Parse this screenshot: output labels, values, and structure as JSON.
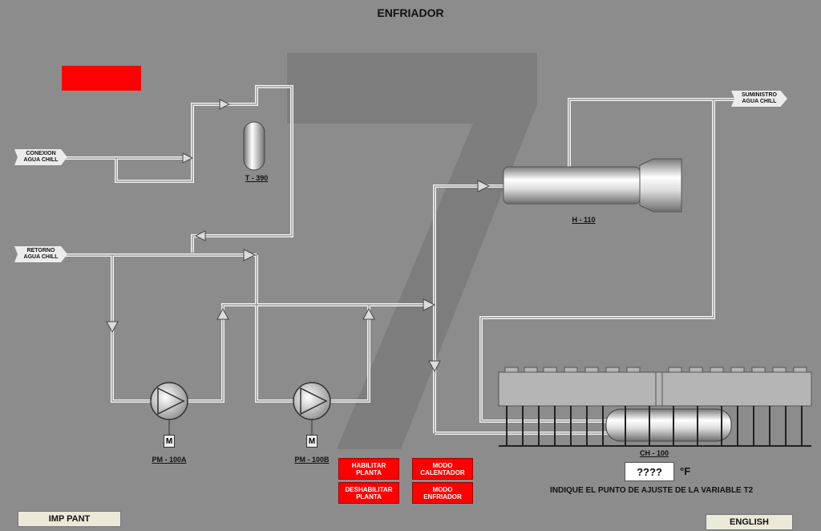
{
  "window": {
    "title": "ENFRIADOR"
  },
  "status_indicator": {
    "color": "#ff0000"
  },
  "inlets": {
    "conexion": {
      "line1": "CONEXION",
      "line2": "AGUA CHILL"
    },
    "retorno": {
      "line1": "RETORNO",
      "line2": "AGUA CHILL"
    },
    "suministro": {
      "line1": "SUMINISTRO",
      "line2": "AGUA CHILL"
    }
  },
  "equipment": {
    "tank": "T - 390",
    "heater": "H - 110",
    "chiller": "CH - 100",
    "pump_a": "PM - 100A",
    "pump_b": "PM - 100B",
    "motor_symbol": "M"
  },
  "controls": {
    "habilitar": {
      "line1": "HABILITAR",
      "line2": "PLANTA"
    },
    "deshabilitar": {
      "line1": "DESHABILITAR",
      "line2": "PLANTA"
    },
    "modo_calentador": {
      "line1": "MODO",
      "line2": "CALENTADOR"
    },
    "modo_enfriador": {
      "line1": "MODO",
      "line2": "ENFRIADOR"
    },
    "setpoint_value": "????",
    "setpoint_unit": "°F",
    "setpoint_prompt": "INDIQUE EL PUNTO DE AJUSTE DE LA VARIABLE T2",
    "print_button": "IMP PANT",
    "language_button": "ENGLISH"
  },
  "colors": {
    "background": "#8c8c8c",
    "pipe": "#f2f2f2",
    "alarm": "#ff0000",
    "watermark": "#7a7a7a"
  }
}
